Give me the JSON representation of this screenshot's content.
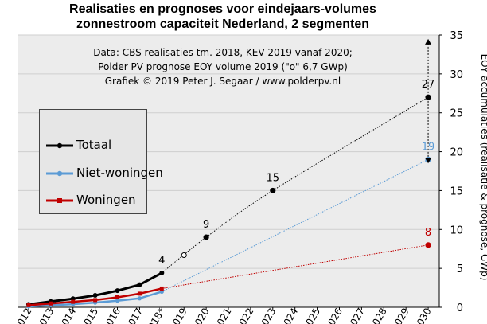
{
  "title_line1": "Realisaties en prognoses voor eindejaars-volumes",
  "title_line2": "zonnestroom capaciteit Nederland, 2 segmenten",
  "credit": [
    "Data: CBS realisaties tm. 2018, KEV 2019 vanaf 2020;",
    "Polder PV prognose EOY volume 2019 (\"o\" 6,7 GWp)",
    "Grafiek © 2019 Peter J. Segaar / www.polderpv.nl"
  ],
  "colors": {
    "totaal": "#000000",
    "niet_woningen": "#5b9bd5",
    "woningen": "#c00000",
    "plot_bg": "#ececec",
    "grid": "#cfcfcf"
  },
  "chart_data": {
    "type": "line",
    "title": "Realisaties en prognoses voor eindejaars-volumes zonnestroom capaciteit Nederland, 2 segmenten",
    "ylabel": "EOY accumulaties (realisatie & prognose, GWp)",
    "ylim": [
      0,
      35
    ],
    "yticks": [
      0,
      5,
      10,
      15,
      20,
      25,
      30,
      35
    ],
    "y_axis_side": "right",
    "categories": [
      "2012",
      "2013",
      "2014",
      "2015",
      "2016",
      "2017",
      "2018*",
      "2019",
      "2020",
      "2021",
      "2022",
      "2023",
      "2024",
      "2025",
      "2026",
      "2027",
      "2028",
      "2029",
      "2030"
    ],
    "grid": "horizontal",
    "legend_position": "left",
    "series": [
      {
        "name": "Totaal",
        "color": "#000000",
        "realisatie": [
          0.37,
          0.74,
          1.1,
          1.53,
          2.13,
          2.9,
          4.41
        ],
        "prognose_2019": 6.7
      },
      {
        "name": "Niet-woningen",
        "color": "#5b9bd5",
        "realisatie": [
          0.1,
          0.25,
          0.4,
          0.6,
          0.85,
          1.15,
          2.0
        ]
      },
      {
        "name": "Woningen",
        "color": "#c00000",
        "realisatie": [
          0.27,
          0.49,
          0.7,
          0.93,
          1.28,
          1.75,
          2.41
        ]
      }
    ],
    "kev_points": [
      {
        "series": "Totaal",
        "category": "2020",
        "value": 9
      },
      {
        "series": "Totaal",
        "category": "2023",
        "value": 15
      },
      {
        "series": "Totaal",
        "category": "2030",
        "value": 27
      },
      {
        "series": "Niet-woningen",
        "category": "2030",
        "value": 19
      },
      {
        "series": "Woningen",
        "category": "2030",
        "value": 8
      }
    ],
    "annotations": [
      {
        "text": "4",
        "category": "2018*",
        "value": 4.41,
        "color": "#000000"
      },
      {
        "text": "9",
        "category": "2020",
        "value": 9,
        "color": "#000000"
      },
      {
        "text": "15",
        "category": "2023",
        "value": 15,
        "color": "#000000"
      },
      {
        "text": "27",
        "category": "2030",
        "value": 27,
        "color": "#000000"
      },
      {
        "text": "19",
        "category": "2030",
        "value": 19,
        "color": "#5b9bd5"
      },
      {
        "text": "8",
        "category": "2030",
        "value": 8,
        "color": "#c00000"
      }
    ]
  }
}
